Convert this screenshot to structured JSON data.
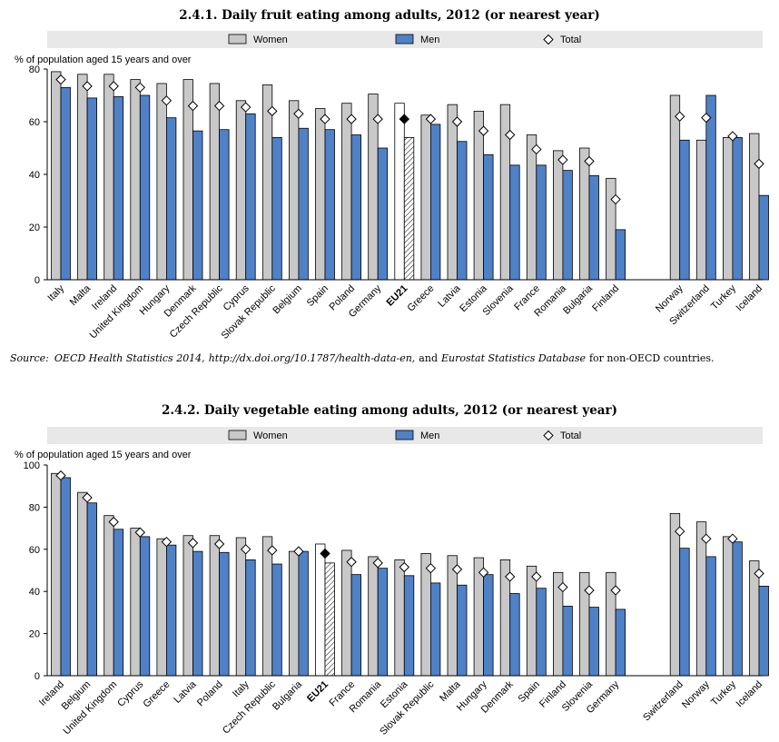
{
  "colors": {
    "women": "#c8c8c8",
    "men": "#4f81c7",
    "legend_band": "#e8e8e8",
    "outline": "#000000"
  },
  "legend": {
    "women": "Women",
    "men": "Men",
    "total": "Total"
  },
  "source": {
    "label": "Source:",
    "text1": "OECD Health Statistics 2014,",
    "url": "http://dx.doi.org/10.1787/health-data-en,",
    "text2": "and",
    "db": "Eurostat Statistics Database",
    "text3": "for non-OECD countries."
  },
  "chart_data": [
    {
      "type": "bar",
      "title": "2.4.1.  Daily fruit eating among adults, 2012 (or nearest year)",
      "ylabel": "% of population aged 15 years and over",
      "ylim": [
        0,
        80
      ],
      "yticks": [
        0,
        20,
        40,
        60,
        80
      ],
      "highlight": "EU21",
      "gap_after": "Finland",
      "categories": [
        "Italy",
        "Malta",
        "Ireland",
        "United Kingdom",
        "Hungary",
        "Denmark",
        "Czech Republic",
        "Cyprus",
        "Slovak Republic",
        "Belgium",
        "Spain",
        "Poland",
        "Germany",
        "EU21",
        "Greece",
        "Latvia",
        "Estonia",
        "Slovenia",
        "France",
        "Romania",
        "Bulgaria",
        "Finland",
        "Norway",
        "Switzerland",
        "Turkey",
        "Iceland"
      ],
      "series": [
        {
          "name": "Women",
          "values": [
            79,
            78,
            78,
            76,
            74.5,
            76,
            74.5,
            68,
            74,
            68,
            65,
            67,
            70.5,
            67,
            62.5,
            66.5,
            64,
            66.5,
            55,
            49,
            50,
            38.5,
            70,
            53,
            54,
            55.5
          ]
        },
        {
          "name": "Men",
          "values": [
            73,
            69,
            69.5,
            70,
            61.5,
            56.5,
            57,
            63,
            54,
            57.5,
            57,
            55,
            50,
            54,
            59,
            52.5,
            47.5,
            43.5,
            43.5,
            41.5,
            39.5,
            19,
            53,
            70,
            54,
            32
          ]
        },
        {
          "name": "Total",
          "values": [
            76,
            73.5,
            73.5,
            73,
            68,
            66,
            66,
            65.5,
            64,
            63,
            61,
            61,
            61,
            61,
            61,
            60,
            56.5,
            55,
            49.5,
            45.5,
            45,
            30.5,
            62,
            61.5,
            54.5,
            44
          ]
        }
      ]
    },
    {
      "type": "bar",
      "title": "2.4.2.  Daily vegetable eating among adults, 2012 (or nearest year)",
      "ylabel": "% of population aged 15 years and over",
      "ylim": [
        0,
        100
      ],
      "yticks": [
        0,
        20,
        40,
        60,
        80,
        100
      ],
      "highlight": "EU21",
      "gap_after": "Germany",
      "categories": [
        "Ireland",
        "Belgium",
        "United Kingdom",
        "Cyprus",
        "Greece",
        "Latvia",
        "Poland",
        "Italy",
        "Czech Republic",
        "Bulgaria",
        "EU21",
        "France",
        "Romania",
        "Estonia",
        "Slovak Republic",
        "Malta",
        "Hungary",
        "Denmark",
        "Spain",
        "Finland",
        "Slovenia",
        "Germany",
        "Switzerland",
        "Norway",
        "Turkey",
        "Iceland"
      ],
      "series": [
        {
          "name": "Women",
          "values": [
            96,
            87,
            76,
            70,
            65,
            66.5,
            66.5,
            65.5,
            66,
            59,
            62.5,
            59.5,
            56.5,
            55,
            58,
            57,
            56,
            55,
            52,
            49,
            49,
            49,
            77,
            73,
            66,
            54.5
          ]
        },
        {
          "name": "Men",
          "values": [
            94,
            82,
            69.5,
            66,
            62,
            59,
            58.5,
            55,
            53,
            59,
            53.5,
            48,
            51,
            47.5,
            44,
            43,
            48,
            39,
            41.5,
            33,
            32.5,
            31.5,
            60.5,
            56.5,
            63.5,
            42.5
          ]
        },
        {
          "name": "Total",
          "values": [
            95,
            84.5,
            73,
            68,
            63.5,
            63,
            62.5,
            60,
            59.5,
            59,
            58,
            54,
            53.5,
            51.5,
            51,
            50.5,
            49,
            47,
            47,
            42,
            40.5,
            40.5,
            68.5,
            65,
            65,
            48.5
          ]
        }
      ]
    }
  ]
}
